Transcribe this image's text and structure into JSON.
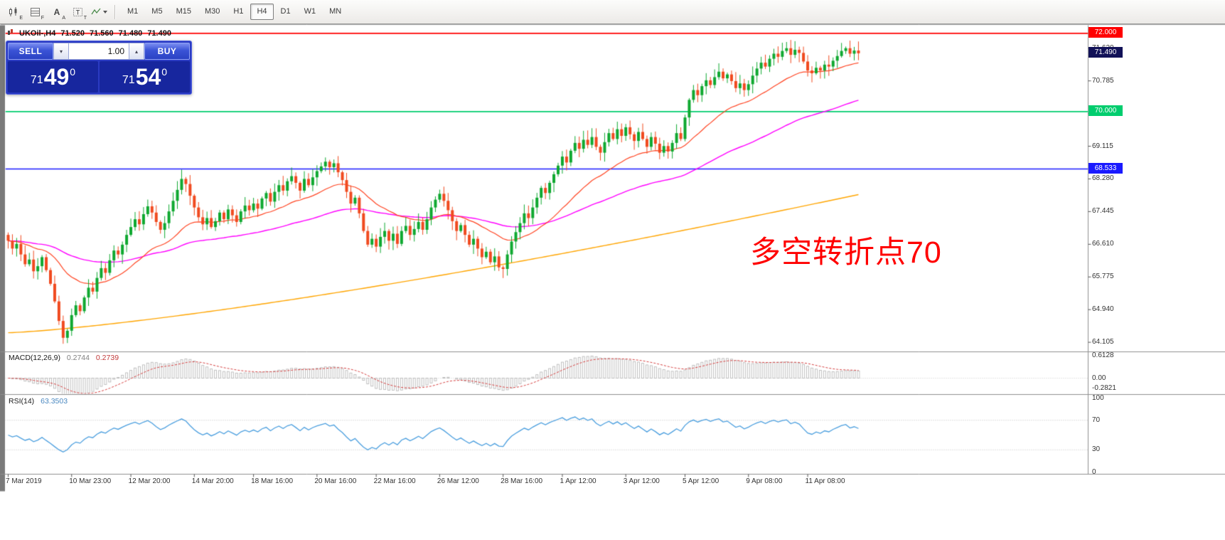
{
  "toolbar": {
    "icon_buttons": [
      {
        "name": "candlestick-tool-icon",
        "letter": "E"
      },
      {
        "name": "grid-tool-icon",
        "letter": "F"
      },
      {
        "name": "cursor-tool-icon",
        "letter": "A"
      },
      {
        "name": "text-tool-icon",
        "letter": "T"
      },
      {
        "name": "indicators-dropdown-icon",
        "letter": ""
      }
    ],
    "timeframes": [
      "M1",
      "M5",
      "M15",
      "M30",
      "H1",
      "H4",
      "D1",
      "W1",
      "MN"
    ],
    "active_timeframe": "H4"
  },
  "chart_header": {
    "symbol_period": "UKOil-,H4",
    "open": "71.520",
    "high": "71.560",
    "low": "71.480",
    "close": "71.490"
  },
  "trade_panel": {
    "sell_label": "SELL",
    "buy_label": "BUY",
    "volume": "1.00",
    "bid": {
      "whole": "71",
      "pips": "49",
      "pipette": "0"
    },
    "ask": {
      "whole": "71",
      "pips": "54",
      "pipette": "0"
    }
  },
  "annotation": {
    "text": "多空转折点70",
    "color": "#ff0000"
  },
  "price_axis": {
    "ticks": [
      71.62,
      70.785,
      69.95,
      69.115,
      68.28,
      67.445,
      66.61,
      65.775,
      64.94,
      64.105
    ],
    "lines": [
      {
        "label": "72.000",
        "value": 72.0,
        "color": "#ff0000"
      },
      {
        "label": "70.000",
        "value": 70.0,
        "color": "#00cd6e"
      },
      {
        "label": "68.533",
        "value": 68.533,
        "color": "#1a1aff"
      }
    ],
    "bid_badge": {
      "label": "71.490",
      "value": 71.49,
      "color": "#121258"
    }
  },
  "time_axis": {
    "labels": [
      "7 Mar 2019",
      "10 Mar 23:00",
      "12 Mar 20:00",
      "14 Mar 20:00",
      "18 Mar 16:00",
      "20 Mar 16:00",
      "22 Mar 16:00",
      "26 Mar 12:00",
      "28 Mar 16:00",
      "1 Apr 12:00",
      "3 Apr 12:00",
      "5 Apr 12:00",
      "9 Apr 08:00",
      "11 Apr 08:00"
    ],
    "candle_indices": [
      0,
      15,
      29,
      44,
      58,
      73,
      87,
      102,
      117,
      131,
      146,
      160,
      175,
      189
    ]
  },
  "indicators": {
    "macd": {
      "title": "MACD(12,26,9)",
      "main_value": "0.2744",
      "signal_value": "0.2739",
      "fast": 12,
      "slow": 26,
      "signal": 9,
      "axis_labels": [
        {
          "text": "0.6128",
          "value": 0.6128
        },
        {
          "text": "0.00",
          "value": 0
        },
        {
          "text": "-0.2821",
          "value": -0.2821
        }
      ],
      "histogram_color": "#b9b9b9",
      "signal_color": "#d43f3f"
    },
    "rsi": {
      "title": "RSI(14)",
      "value": "63.3503",
      "period": 14,
      "axis_labels": [
        {
          "text": "100",
          "value": 100
        },
        {
          "text": "70",
          "value": 70
        },
        {
          "text": "30",
          "value": 30
        },
        {
          "text": "0",
          "value": 0
        }
      ],
      "levels": [
        70,
        30
      ],
      "line_color": "#4a9ede",
      "level_color": "#c0c0c0"
    }
  },
  "chart_data": {
    "type": "candlestick",
    "symbol": "UKOil-",
    "period": "H4",
    "y_range": [
      63.88,
      72.17
    ],
    "first_open": 66.85,
    "up_color": "#0fa830",
    "down_color": "#f04a1f",
    "moving_averages": [
      {
        "name": "fast-ma",
        "type": "ema",
        "period": 24,
        "color": "#ff4422"
      },
      {
        "name": "mid-ma",
        "type": "ema",
        "period": 72,
        "color": "#ff00ff"
      },
      {
        "name": "slow-ma",
        "type": "trend",
        "start": 64.35,
        "end": 67.88,
        "color": "#ffa500"
      }
    ],
    "closes": [
      66.7,
      66.5,
      66.62,
      66.35,
      66.1,
      66.22,
      65.92,
      66.05,
      66.28,
      65.95,
      65.6,
      65.15,
      64.65,
      64.22,
      64.4,
      64.8,
      65.05,
      64.9,
      65.25,
      65.5,
      65.4,
      65.75,
      66.0,
      65.88,
      66.2,
      66.45,
      66.35,
      66.6,
      66.85,
      67.05,
      67.25,
      67.12,
      67.38,
      67.58,
      67.42,
      67.18,
      66.98,
      67.15,
      67.45,
      67.72,
      68.0,
      68.28,
      68.15,
      67.85,
      67.55,
      67.3,
      67.12,
      67.28,
      67.05,
      67.2,
      67.42,
      67.25,
      67.5,
      67.35,
      67.18,
      67.45,
      67.6,
      67.48,
      67.65,
      67.52,
      67.78,
      67.92,
      67.7,
      67.95,
      68.12,
      67.98,
      68.22,
      68.35,
      68.18,
      67.98,
      68.28,
      68.12,
      68.32,
      68.48,
      68.6,
      68.72,
      68.58,
      68.68,
      68.45,
      68.25,
      67.95,
      67.65,
      67.8,
      67.4,
      66.95,
      66.6,
      66.75,
      66.55,
      66.8,
      66.95,
      66.7,
      66.88,
      66.62,
      66.95,
      67.08,
      66.85,
      67.0,
      67.18,
      66.98,
      67.25,
      67.55,
      67.75,
      67.9,
      67.72,
      67.48,
      67.2,
      66.95,
      67.1,
      66.85,
      66.6,
      66.75,
      66.5,
      66.28,
      66.42,
      66.15,
      66.3,
      66.02,
      65.98,
      66.35,
      66.68,
      66.92,
      67.15,
      67.4,
      67.28,
      67.55,
      67.8,
      68.05,
      67.92,
      68.18,
      68.4,
      68.62,
      68.85,
      68.7,
      69.0,
      69.2,
      69.05,
      69.28,
      69.15,
      69.35,
      69.1,
      68.95,
      69.22,
      69.45,
      69.3,
      69.55,
      69.38,
      69.6,
      69.42,
      69.25,
      69.48,
      69.3,
      69.1,
      69.35,
      69.18,
      68.95,
      69.12,
      68.98,
      69.2,
      69.45,
      69.3,
      69.85,
      70.3,
      70.55,
      70.42,
      70.65,
      70.8,
      70.68,
      70.88,
      71.02,
      70.85,
      70.95,
      70.78,
      70.6,
      70.72,
      70.55,
      70.7,
      70.92,
      71.1,
      71.25,
      71.15,
      71.35,
      71.48,
      71.4,
      71.55,
      71.62,
      71.45,
      71.58,
      71.5,
      71.28,
      71.05,
      70.98,
      71.12,
      71.05,
      71.2,
      71.15,
      71.3,
      71.42,
      71.55,
      71.62,
      71.48,
      71.56,
      71.49
    ]
  }
}
